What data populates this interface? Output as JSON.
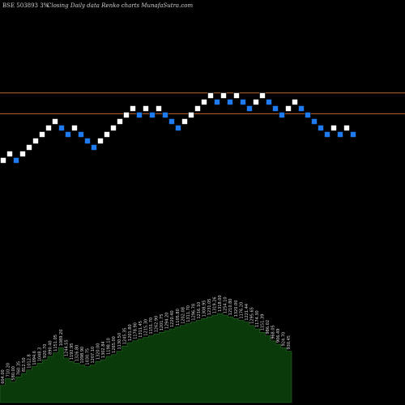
{
  "header": {
    "left": "BSE 503893 3%",
    "right": "Closing Daily data  Renko  charts MunafaSutra.com"
  },
  "colors": {
    "background": "#000000",
    "up_brick": "#ffffff",
    "down_brick": "#1e7bf0",
    "brick_border": "#000000",
    "resistance_line": "#c0622b",
    "volume_fill": "#0a3a0a"
  },
  "chart_data": {
    "type": "renko",
    "title": "",
    "price_range": [
      0,
      100
    ],
    "bricks": [
      {
        "level": 2,
        "dir": "up"
      },
      {
        "level": 3,
        "dir": "up"
      },
      {
        "level": 2,
        "dir": "down"
      },
      {
        "level": 3,
        "dir": "up"
      },
      {
        "level": 4,
        "dir": "up"
      },
      {
        "level": 5,
        "dir": "up"
      },
      {
        "level": 6,
        "dir": "up"
      },
      {
        "level": 7,
        "dir": "up"
      },
      {
        "level": 8,
        "dir": "up"
      },
      {
        "level": 7,
        "dir": "down"
      },
      {
        "level": 6,
        "dir": "down"
      },
      {
        "level": 7,
        "dir": "up"
      },
      {
        "level": 6,
        "dir": "down"
      },
      {
        "level": 5,
        "dir": "down"
      },
      {
        "level": 4,
        "dir": "down"
      },
      {
        "level": 5,
        "dir": "up"
      },
      {
        "level": 6,
        "dir": "up"
      },
      {
        "level": 7,
        "dir": "up"
      },
      {
        "level": 8,
        "dir": "up"
      },
      {
        "level": 9,
        "dir": "up"
      },
      {
        "level": 10,
        "dir": "up"
      },
      {
        "level": 9,
        "dir": "down"
      },
      {
        "level": 10,
        "dir": "up"
      },
      {
        "level": 9,
        "dir": "down"
      },
      {
        "level": 10,
        "dir": "up"
      },
      {
        "level": 9,
        "dir": "down"
      },
      {
        "level": 8,
        "dir": "down"
      },
      {
        "level": 7,
        "dir": "down"
      },
      {
        "level": 8,
        "dir": "up"
      },
      {
        "level": 9,
        "dir": "up"
      },
      {
        "level": 10,
        "dir": "up"
      },
      {
        "level": 11,
        "dir": "up"
      },
      {
        "level": 12,
        "dir": "up"
      },
      {
        "level": 11,
        "dir": "down"
      },
      {
        "level": 12,
        "dir": "up"
      },
      {
        "level": 11,
        "dir": "down"
      },
      {
        "level": 12,
        "dir": "up"
      },
      {
        "level": 11,
        "dir": "down"
      },
      {
        "level": 10,
        "dir": "down"
      },
      {
        "level": 11,
        "dir": "up"
      },
      {
        "level": 12,
        "dir": "up"
      },
      {
        "level": 11,
        "dir": "down"
      },
      {
        "level": 10,
        "dir": "down"
      },
      {
        "level": 9,
        "dir": "down"
      },
      {
        "level": 10,
        "dir": "up"
      },
      {
        "level": 11,
        "dir": "up"
      },
      {
        "level": 10,
        "dir": "down"
      },
      {
        "level": 9,
        "dir": "down"
      },
      {
        "level": 8,
        "dir": "down"
      },
      {
        "level": 7,
        "dir": "down"
      },
      {
        "level": 6,
        "dir": "down"
      },
      {
        "level": 7,
        "dir": "up"
      },
      {
        "level": 6,
        "dir": "down"
      },
      {
        "level": 7,
        "dir": "up"
      },
      {
        "level": 6,
        "dir": "down"
      }
    ],
    "resistance_levels": [
      11.9,
      8.7
    ],
    "volume": [
      20,
      28,
      24,
      30,
      34,
      38,
      42,
      46,
      50,
      54,
      58,
      64,
      52,
      48,
      46,
      44,
      42,
      44,
      48,
      50,
      54,
      56,
      60,
      66,
      70,
      72,
      74,
      76,
      78,
      80,
      82,
      84,
      86,
      88,
      90,
      92,
      94,
      96,
      98,
      100,
      102,
      104,
      102,
      100,
      98,
      96,
      94,
      90,
      86,
      82,
      78,
      72,
      68,
      64,
      60
    ],
    "volume_labels": [
      "604.00",
      "710.20",
      "580.00",
      "760.35",
      "812.50",
      "1012.8",
      "1094.6",
      "1048.3",
      "920.70",
      "890.40",
      "1151.05",
      "1089.20",
      "1244.55",
      "1192.95",
      "1326.80",
      "1098.90",
      "1030.75",
      "1207.10",
      "1320.00",
      "1302.84",
      "1198.10",
      "1265.00",
      "1130.50",
      "1245.35",
      "1201.80",
      "1178.90",
      "1311.45",
      "1215.30",
      "1151.70",
      "1262.90",
      "1201.75",
      "1294.20",
      "1220.40",
      "1105.80",
      "1202.08",
      "1311.70",
      "1296.78",
      "1216.10",
      "1308.95",
      "1231.05",
      "1319.26",
      "1318.00",
      "1254.10",
      "1210.80",
      "1320.00",
      "1176.20",
      "1221.44",
      "1295.65",
      "1174.30",
      "1151.39",
      "986.02",
      "968.05",
      "906.49",
      "924.70",
      "930.45"
    ]
  }
}
